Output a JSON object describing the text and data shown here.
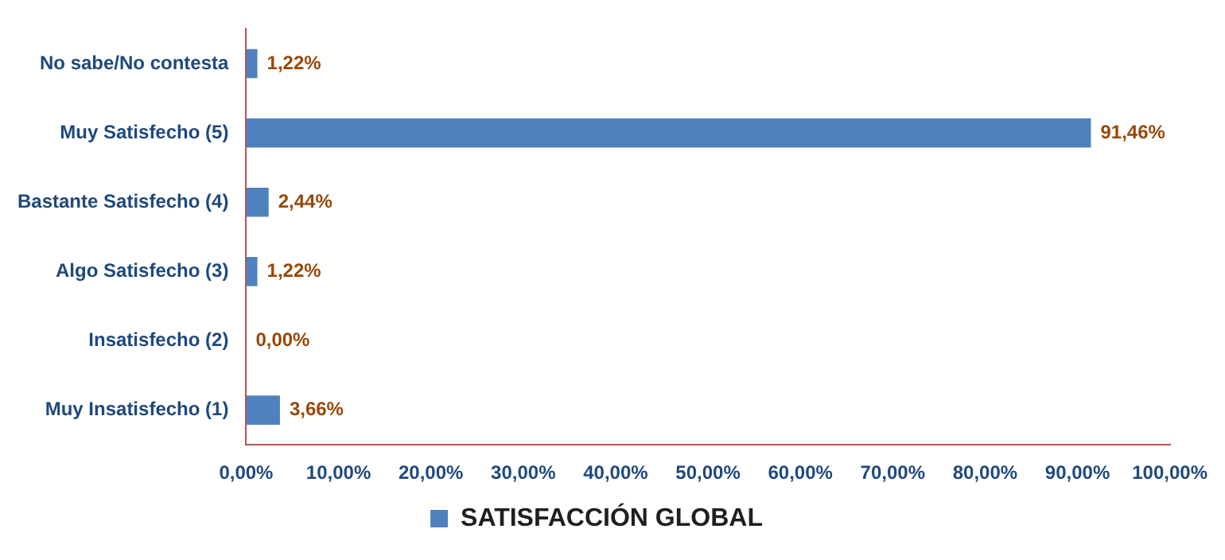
{
  "chart_data": {
    "type": "bar",
    "orientation": "horizontal",
    "categories": [
      "No sabe/No contesta",
      "Muy Satisfecho (5)",
      "Bastante Satisfecho (4)",
      "Algo Satisfecho (3)",
      "Insatisfecho (2)",
      "Muy Insatisfecho (1)"
    ],
    "series": [
      {
        "name": "SATISFACCIÓN GLOBAL",
        "color": "#4f81bd",
        "values": [
          1.22,
          91.46,
          2.44,
          1.22,
          0,
          3.66
        ],
        "value_labels": [
          "1,22%",
          "91,46%",
          "2,44%",
          "1,22%",
          "0,00%",
          "3,66%"
        ]
      }
    ],
    "xlim": [
      0,
      100
    ],
    "xticks": [
      {
        "value": 0,
        "label": "0,00%"
      },
      {
        "value": 10,
        "label": "10,00%"
      },
      {
        "value": 20,
        "label": "20,00%"
      },
      {
        "value": 30,
        "label": "30,00%"
      },
      {
        "value": 40,
        "label": "40,00%"
      },
      {
        "value": 50,
        "label": "50,00%"
      },
      {
        "value": 60,
        "label": "60,00%"
      },
      {
        "value": 70,
        "label": "70,00%"
      },
      {
        "value": 80,
        "label": "80,00%"
      },
      {
        "value": 90,
        "label": "90,00%"
      },
      {
        "value": 100,
        "label": "100,00%"
      }
    ],
    "grid": false,
    "legend": "bottom"
  }
}
